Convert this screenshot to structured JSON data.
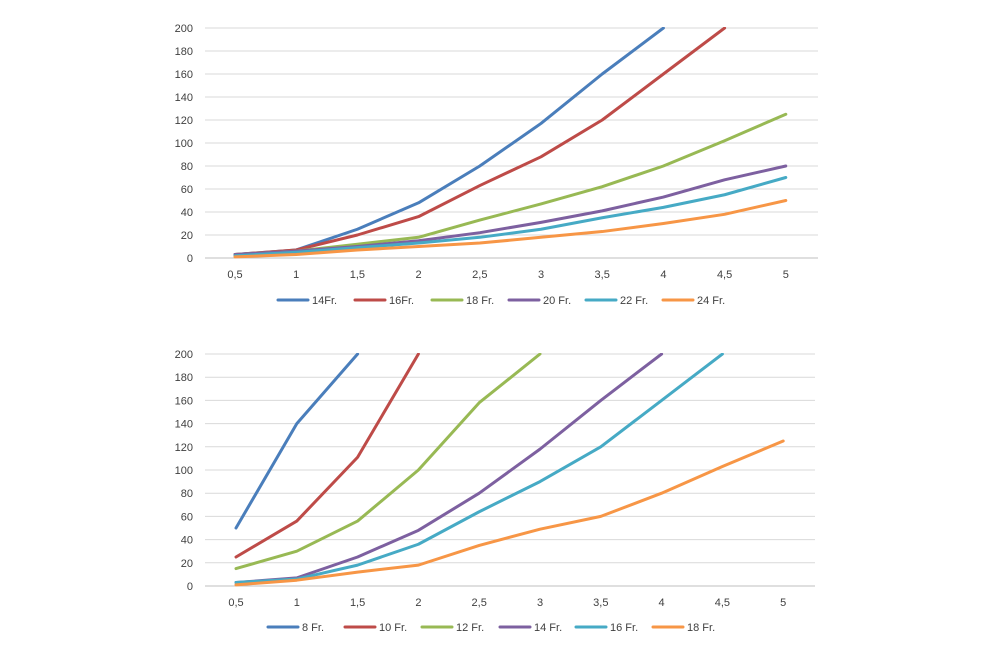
{
  "chart_data": [
    {
      "type": "line",
      "x": [
        "0,5",
        "1",
        "1,5",
        "2",
        "2,5",
        "3",
        "3,5",
        "4",
        "4,5",
        "5"
      ],
      "ylim": [
        0,
        200
      ],
      "yticks": [
        "0",
        "20",
        "40",
        "60",
        "80",
        "100",
        "120",
        "140",
        "160",
        "180",
        "200"
      ],
      "grid": true,
      "legend_position": "bottom",
      "series": [
        {
          "name": "14Fr.",
          "color": "#4a7ebb",
          "values": [
            3,
            7,
            25,
            48,
            80,
            117,
            160,
            200,
            null,
            null
          ]
        },
        {
          "name": "16Fr.",
          "color": "#be4b48",
          "values": [
            3,
            7,
            20,
            36,
            63,
            88,
            120,
            160,
            200,
            null
          ]
        },
        {
          "name": "18 Fr.",
          "color": "#98b954",
          "values": [
            3,
            6,
            12,
            18,
            33,
            47,
            62,
            80,
            102,
            125
          ]
        },
        {
          "name": "20 Fr.",
          "color": "#7d60a0",
          "values": [
            3,
            6,
            10,
            15,
            22,
            31,
            41,
            53,
            68,
            80
          ]
        },
        {
          "name": "22 Fr.",
          "color": "#46aac5",
          "values": [
            2,
            5,
            9,
            13,
            18,
            25,
            35,
            44,
            55,
            70
          ]
        },
        {
          "name": "24 Fr.",
          "color": "#f79646",
          "values": [
            1,
            3,
            7,
            10,
            13,
            18,
            23,
            30,
            38,
            50
          ]
        }
      ]
    },
    {
      "type": "line",
      "x": [
        "0,5",
        "1",
        "1,5",
        "2",
        "2,5",
        "3",
        "3,5",
        "4",
        "4,5",
        "5"
      ],
      "ylim": [
        0,
        200
      ],
      "yticks": [
        "0",
        "20",
        "40",
        "60",
        "80",
        "100",
        "120",
        "140",
        "160",
        "180",
        "200"
      ],
      "grid": true,
      "legend_position": "bottom",
      "series": [
        {
          "name": "8 Fr.",
          "color": "#4a7ebb",
          "values": [
            50,
            140,
            200,
            null,
            null,
            null,
            null,
            null,
            null,
            null
          ]
        },
        {
          "name": "10 Fr.",
          "color": "#be4b48",
          "values": [
            25,
            56,
            111,
            200,
            null,
            null,
            null,
            null,
            null,
            null
          ]
        },
        {
          "name": "12 Fr.",
          "color": "#98b954",
          "values": [
            15,
            30,
            56,
            100,
            158,
            200,
            null,
            null,
            null,
            null
          ]
        },
        {
          "name": "14 Fr.",
          "color": "#7d60a0",
          "values": [
            3,
            7,
            25,
            48,
            80,
            118,
            160,
            200,
            null,
            null
          ]
        },
        {
          "name": "16 Fr.",
          "color": "#46aac5",
          "values": [
            3,
            6,
            18,
            36,
            64,
            90,
            120,
            160,
            200,
            null
          ]
        },
        {
          "name": "18 Fr.",
          "color": "#f79646",
          "values": [
            1,
            5,
            12,
            18,
            35,
            49,
            60,
            80,
            103,
            125
          ]
        }
      ]
    }
  ]
}
